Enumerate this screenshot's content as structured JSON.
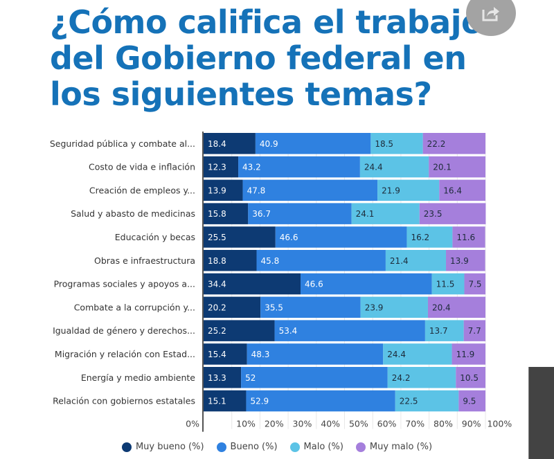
{
  "header": {
    "title": "¿Cómo califica el trabajo del Gobierno federal en los siguientes temas?",
    "share_icon": "share-icon"
  },
  "chart_data": {
    "type": "bar",
    "orientation": "horizontal",
    "stacked": true,
    "normalized": true,
    "title": "¿Cómo califica el trabajo del Gobierno federal en los siguientes temas?",
    "xlabel": "",
    "ylabel": "",
    "xlim": [
      0,
      100
    ],
    "x_ticks": [
      "0%",
      "10%",
      "20%",
      "30%",
      "40%",
      "50%",
      "60%",
      "70%",
      "80%",
      "90%",
      "100%"
    ],
    "grid": true,
    "legend_position": "bottom",
    "categories": [
      "Seguridad pública y combate al...",
      "Costo de vida e inflación",
      "Creación de empleos y...",
      "Salud y abasto de medicinas",
      "Educación y becas",
      "Obras e infraestructura",
      "Programas sociales y apoyos a...",
      "Combate a la corrupción y...",
      "Igualdad de género y derechos...",
      "Migración y relación con Estad...",
      "Energía y medio ambiente",
      "Relación con gobiernos estatales"
    ],
    "series": [
      {
        "name": "Muy bueno (%)",
        "color": "#0d3a73",
        "label_color": "#ffffff",
        "values": [
          18.4,
          12.3,
          13.9,
          15.8,
          25.5,
          18.8,
          34.4,
          20.2,
          25.2,
          15.4,
          13.3,
          15.1
        ]
      },
      {
        "name": "Bueno (%)",
        "color": "#2f81e0",
        "label_color": "#ffffff",
        "values": [
          40.9,
          43.2,
          47.8,
          36.7,
          46.6,
          45.8,
          46.6,
          35.5,
          53.4,
          48.3,
          52,
          52.9
        ]
      },
      {
        "name": "Malo (%)",
        "color": "#5cc3e6",
        "label_color": "#1d2b3a",
        "values": [
          18.5,
          24.4,
          21.9,
          24.1,
          16.2,
          21.4,
          11.5,
          23.9,
          13.7,
          24.4,
          24.2,
          22.5
        ]
      },
      {
        "name": "Muy malo (%)",
        "color": "#a57fdc",
        "label_color": "#1d2b3a",
        "values": [
          22.2,
          20.1,
          16.4,
          23.5,
          11.6,
          13.9,
          7.5,
          20.4,
          7.7,
          11.9,
          10.5,
          9.5
        ]
      }
    ]
  }
}
